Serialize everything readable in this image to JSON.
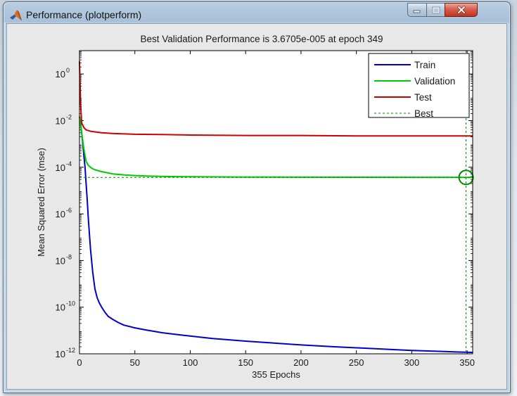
{
  "window": {
    "title": "Performance (plotperform)",
    "controls": {
      "minimize_icon": "minimize-icon",
      "maximize_icon": "maximize-icon",
      "close_icon": "close-icon"
    }
  },
  "chart_data": {
    "type": "line",
    "title": "Best Validation Performance is 3.6705e-005 at epoch 349",
    "xlabel": "355 Epochs",
    "ylabel": "Mean Squared Error  (mse)",
    "xlim": [
      0,
      355
    ],
    "ylim": [
      1e-12,
      10
    ],
    "yscale": "log",
    "grid": false,
    "legend_position": "top-right",
    "x_ticks": [
      0,
      50,
      100,
      150,
      200,
      250,
      300,
      350
    ],
    "y_ticks": [
      {
        "value": 1,
        "base": "10",
        "exp": "0"
      },
      {
        "value": 0.01,
        "base": "10",
        "exp": "-2"
      },
      {
        "value": 0.0001,
        "base": "10",
        "exp": "-4"
      },
      {
        "value": 1e-06,
        "base": "10",
        "exp": "-6"
      },
      {
        "value": 1e-08,
        "base": "10",
        "exp": "-8"
      },
      {
        "value": 1e-10,
        "base": "10",
        "exp": "-10"
      },
      {
        "value": 1e-12,
        "base": "10",
        "exp": "-12"
      }
    ],
    "series": [
      {
        "name": "Train",
        "color": "#0000cc",
        "dash": "",
        "x": [
          0,
          1,
          2,
          3,
          4,
          5,
          6,
          7,
          8,
          10,
          12,
          14,
          16,
          18,
          20,
          23,
          26,
          30,
          35,
          40,
          50,
          60,
          75,
          90,
          100,
          120,
          150,
          180,
          200,
          230,
          250,
          280,
          300,
          320,
          340,
          355
        ],
        "y": [
          0.015,
          0.008,
          0.003,
          0.001,
          0.0003,
          0.0001,
          2e-05,
          4e-06,
          6e-07,
          3e-08,
          3e-09,
          6e-10,
          2.5e-10,
          1.5e-10,
          1e-10,
          6e-11,
          4e-11,
          3e-11,
          2.2e-11,
          1.7e-11,
          1.3e-11,
          1.05e-11,
          8e-12,
          6.5e-12,
          5.8e-12,
          4.5e-12,
          3.5e-12,
          2.8e-12,
          2.4e-12,
          2e-12,
          1.8e-12,
          1.55e-12,
          1.4e-12,
          1.3e-12,
          1.2e-12,
          1.15e-12
        ]
      },
      {
        "name": "Validation",
        "color": "#00cc00",
        "dash": "",
        "x": [
          0,
          2,
          4,
          6,
          8,
          10,
          12,
          15,
          20,
          25,
          30,
          40,
          50,
          60,
          80,
          100,
          150,
          200,
          250,
          300,
          349,
          355
        ],
        "y": [
          0.015,
          0.003,
          0.0006,
          0.00018,
          0.00012,
          0.0001,
          8.5e-05,
          7.5e-05,
          6.5e-05,
          5.8e-05,
          5.2e-05,
          4.7e-05,
          4.4e-05,
          4.2e-05,
          4e-05,
          3.9e-05,
          3.8e-05,
          3.75e-05,
          3.72e-05,
          3.7e-05,
          3.67e-05,
          3.67e-05
        ]
      },
      {
        "name": "Test",
        "color": "#cc0000",
        "dash": "",
        "x": [
          0,
          1,
          2,
          4,
          6,
          10,
          20,
          30,
          50,
          80,
          100,
          150,
          200,
          250,
          300,
          355
        ],
        "y": [
          3.5,
          0.05,
          0.008,
          0.005,
          0.004,
          0.0035,
          0.003,
          0.0028,
          0.0026,
          0.0025,
          0.0024,
          0.0023,
          0.0023,
          0.0022,
          0.0022,
          0.0022
        ]
      },
      {
        "name": "Best",
        "color": "#008800",
        "dash": "3,3",
        "x": [
          0,
          355
        ],
        "y": [
          3.6705e-05,
          3.6705e-05
        ]
      }
    ],
    "best_marker": {
      "x": 349,
      "y": 3.6705e-05,
      "color": "#008800"
    }
  }
}
